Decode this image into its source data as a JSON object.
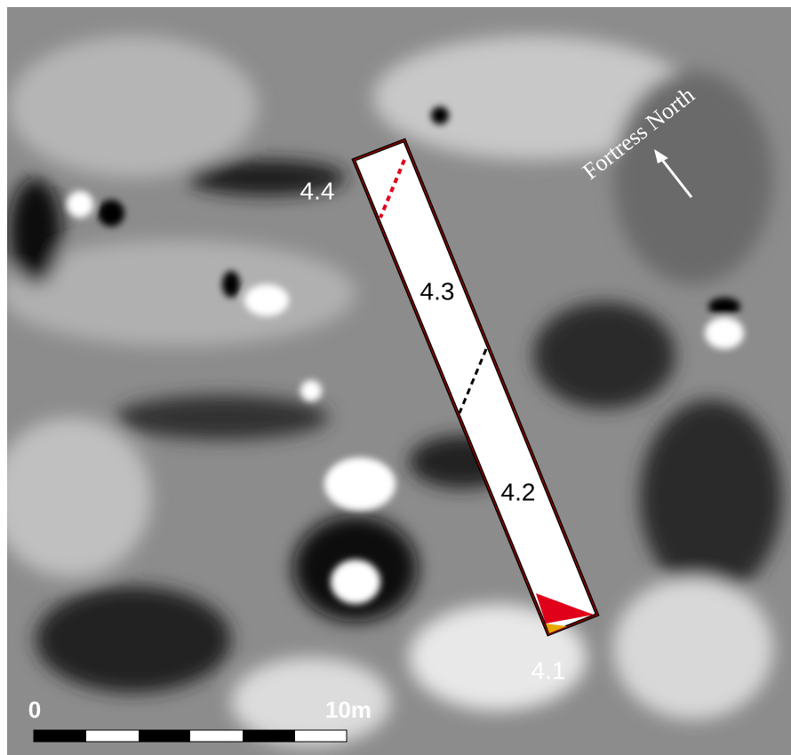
{
  "labels": {
    "trench_4_4": "4.4",
    "trench_4_3": "4.3",
    "trench_4_2": "4.2",
    "trench_4_1": "4.1",
    "north": "Fortress North"
  },
  "scale_bar": {
    "start": "0",
    "end": "10m"
  }
}
